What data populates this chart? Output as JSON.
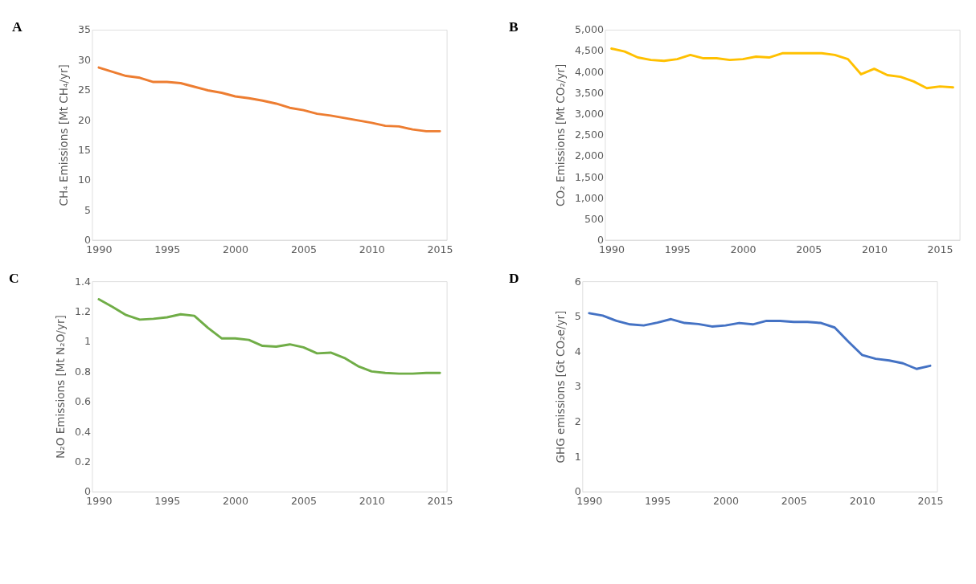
{
  "chart_data": [
    {
      "type": "line",
      "title": "A",
      "ylabel": "CH₄ Emissions [Mt CH₄/yr]",
      "x": [
        1990,
        1991,
        1992,
        1993,
        1994,
        1995,
        1996,
        1997,
        1998,
        1999,
        2000,
        2001,
        2002,
        2003,
        2004,
        2005,
        2006,
        2007,
        2008,
        2009,
        2010,
        2011,
        2012,
        2013,
        2014,
        2015
      ],
      "xlim": [
        1989.5,
        2015.5
      ],
      "xticks": [
        1990,
        1995,
        2000,
        2005,
        2010,
        2015
      ],
      "ylim": [
        0,
        35
      ],
      "yticks": [
        0,
        5,
        10,
        15,
        20,
        25,
        30,
        35
      ],
      "series": [
        {
          "color": "#ed7d31",
          "values": [
            28.7,
            28.0,
            27.3,
            27.0,
            26.3,
            26.3,
            26.1,
            25.5,
            24.9,
            24.5,
            23.9,
            23.6,
            23.2,
            22.7,
            22.0,
            21.6,
            21.0,
            20.7,
            20.3,
            19.9,
            19.5,
            19.0,
            18.9,
            18.4,
            18.1,
            18.1
          ]
        }
      ]
    },
    {
      "type": "line",
      "title": "B",
      "ylabel": "CO₂ Emissions [Mt CO₂/yr]",
      "x": [
        1990,
        1991,
        1992,
        1993,
        1994,
        1995,
        1996,
        1997,
        1998,
        1999,
        2000,
        2001,
        2002,
        2003,
        2004,
        2005,
        2006,
        2007,
        2008,
        2009,
        2010,
        2011,
        2012,
        2013,
        2014,
        2015,
        2016
      ],
      "xlim": [
        1989.5,
        2016.5
      ],
      "xticks": [
        1990,
        1995,
        2000,
        2005,
        2010,
        2015
      ],
      "ylim": [
        0,
        5000
      ],
      "yticks": [
        0,
        500,
        {
          "value": 1000,
          "label": "1,000"
        },
        {
          "value": 1500,
          "label": "1,500"
        },
        {
          "value": 2000,
          "label": "2,000"
        },
        {
          "value": 2500,
          "label": "2,500"
        },
        {
          "value": 3000,
          "label": "3,000"
        },
        {
          "value": 3500,
          "label": "3,500"
        },
        {
          "value": 4000,
          "label": "4,000"
        },
        {
          "value": 4500,
          "label": "4,500"
        },
        {
          "value": 5000,
          "label": "5,000"
        }
      ],
      "series": [
        {
          "color": "#ffc000",
          "values": [
            4550,
            4480,
            4340,
            4280,
            4260,
            4300,
            4400,
            4320,
            4320,
            4280,
            4300,
            4360,
            4340,
            4440,
            4440,
            4440,
            4440,
            4400,
            4300,
            3940,
            4070,
            3920,
            3880,
            3770,
            3610,
            3650,
            3630
          ]
        }
      ]
    },
    {
      "type": "line",
      "title": "C",
      "ylabel": "N₂O Emissions [Mt N₂O/yr]",
      "x": [
        1990,
        1991,
        1992,
        1993,
        1994,
        1995,
        1996,
        1997,
        1998,
        1999,
        2000,
        2001,
        2002,
        2003,
        2004,
        2005,
        2006,
        2007,
        2008,
        2009,
        2010,
        2011,
        2012,
        2013,
        2014,
        2015
      ],
      "xlim": [
        1989.5,
        2015.5
      ],
      "xticks": [
        1990,
        1995,
        2000,
        2005,
        2010,
        2015
      ],
      "ylim": [
        0,
        1.4
      ],
      "yticks": [
        0,
        0.2,
        0.4,
        0.6,
        0.8,
        1,
        1.2,
        1.4
      ],
      "series": [
        {
          "color": "#70ad47",
          "values": [
            1.28,
            1.23,
            1.175,
            1.145,
            1.15,
            1.16,
            1.18,
            1.17,
            1.09,
            1.02,
            1.02,
            1.01,
            0.97,
            0.965,
            0.98,
            0.96,
            0.92,
            0.925,
            0.89,
            0.835,
            0.8,
            0.79,
            0.785,
            0.785,
            0.79,
            0.79
          ]
        }
      ]
    },
    {
      "type": "line",
      "title": "D",
      "ylabel": "GHG emissions [Gt CO₂e/yr]",
      "x": [
        1990,
        1991,
        1992,
        1993,
        1994,
        1995,
        1996,
        1997,
        1998,
        1999,
        2000,
        2001,
        2002,
        2003,
        2004,
        2005,
        2006,
        2007,
        2008,
        2009,
        2010,
        2011,
        2012,
        2013,
        2014,
        2015
      ],
      "xlim": [
        1989.5,
        2015.5
      ],
      "xticks": [
        1990,
        1995,
        2000,
        2005,
        2010,
        2015
      ],
      "ylim": [
        0,
        6
      ],
      "yticks": [
        0,
        1,
        2,
        3,
        4,
        5,
        6
      ],
      "series": [
        {
          "color": "#4472c4",
          "values": [
            5.09,
            5.02,
            4.87,
            4.77,
            4.74,
            4.82,
            4.92,
            4.81,
            4.78,
            4.71,
            4.74,
            4.81,
            4.77,
            4.87,
            4.87,
            4.84,
            4.84,
            4.81,
            4.68,
            4.28,
            3.9,
            3.79,
            3.74,
            3.66,
            3.5,
            3.59
          ]
        }
      ]
    }
  ]
}
